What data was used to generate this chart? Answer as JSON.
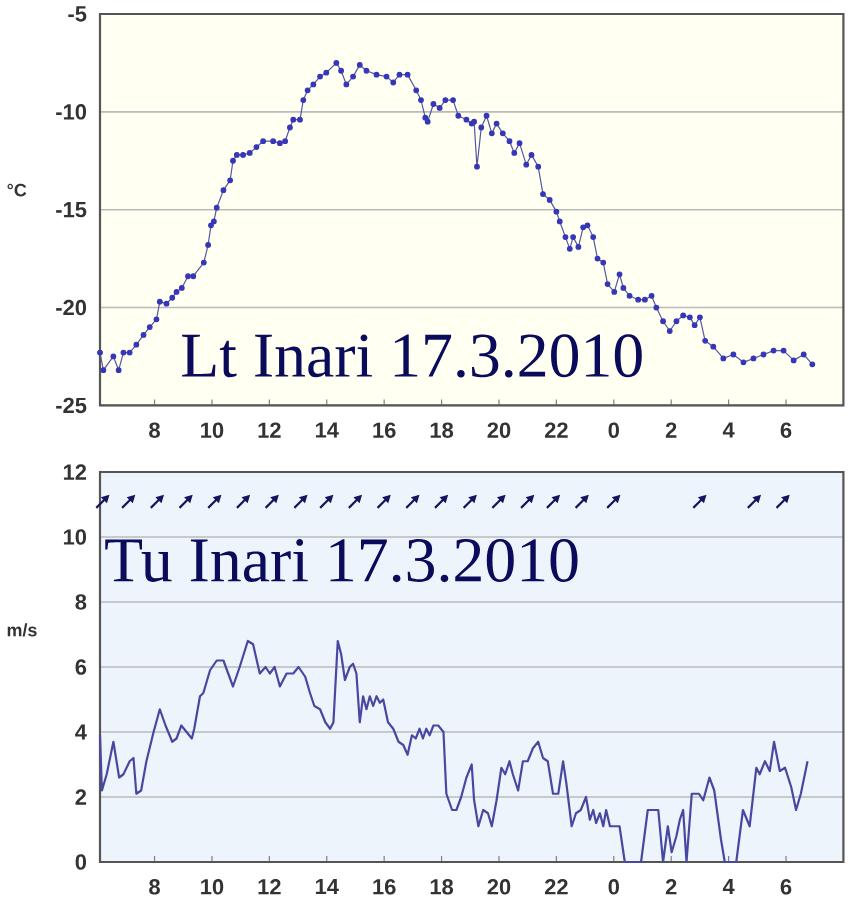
{
  "chart_data": [
    {
      "type": "line",
      "title": "Lt Inari 17.3.2010",
      "ylabel": "°C",
      "xlim": [
        "2010-03-17T06:06",
        "2010-03-18T08:00"
      ],
      "ylim": [
        -25,
        -5
      ],
      "xticks": [
        {
          "value": "2010-03-17T08:00",
          "label": "8"
        },
        {
          "value": "2010-03-17T10:00",
          "label": "10"
        },
        {
          "value": "2010-03-17T12:00",
          "label": "12"
        },
        {
          "value": "2010-03-17T14:00",
          "label": "14"
        },
        {
          "value": "2010-03-17T16:00",
          "label": "16"
        },
        {
          "value": "2010-03-17T18:00",
          "label": "18"
        },
        {
          "value": "2010-03-17T20:00",
          "label": "20"
        },
        {
          "value": "2010-03-17T22:00",
          "label": "22"
        },
        {
          "value": "2010-03-18T00:00",
          "label": "0"
        },
        {
          "value": "2010-03-18T02:00",
          "label": "2"
        },
        {
          "value": "2010-03-18T04:00",
          "label": "4"
        },
        {
          "value": "2010-03-18T06:00",
          "label": "6"
        }
      ],
      "yticks": [
        -25,
        -20,
        -15,
        -10,
        -5
      ],
      "grid": "y",
      "marker": "circle",
      "color": "#3636b8",
      "x": [
        "2010-03-17T06:06",
        "2010-03-17T06:13",
        "2010-03-17T06:34",
        "2010-03-17T06:45",
        "2010-03-17T06:55",
        "2010-03-17T07:08",
        "2010-03-17T07:22",
        "2010-03-17T07:37",
        "2010-03-17T07:50",
        "2010-03-17T08:04",
        "2010-03-17T08:11",
        "2010-03-17T08:25",
        "2010-03-17T08:37",
        "2010-03-17T08:46",
        "2010-03-17T08:57",
        "2010-03-17T09:10",
        "2010-03-17T09:21",
        "2010-03-17T09:43",
        "2010-03-17T09:52",
        "2010-03-17T09:58",
        "2010-03-17T10:04",
        "2010-03-17T10:10",
        "2010-03-17T10:24",
        "2010-03-17T10:38",
        "2010-03-17T10:44",
        "2010-03-17T10:52",
        "2010-03-17T11:05",
        "2010-03-17T11:19",
        "2010-03-17T11:33",
        "2010-03-17T11:47",
        "2010-03-17T12:08",
        "2010-03-17T12:22",
        "2010-03-17T12:33",
        "2010-03-17T12:43",
        "2010-03-17T12:50",
        "2010-03-17T13:04",
        "2010-03-17T13:11",
        "2010-03-17T13:20",
        "2010-03-17T13:32",
        "2010-03-17T13:46",
        "2010-03-17T13:59",
        "2010-03-17T14:20",
        "2010-03-17T14:30",
        "2010-03-17T14:41",
        "2010-03-17T14:55",
        "2010-03-17T15:09",
        "2010-03-17T15:23",
        "2010-03-17T15:44",
        "2010-03-17T16:05",
        "2010-03-17T16:19",
        "2010-03-17T16:32",
        "2010-03-17T16:49",
        "2010-03-17T17:07",
        "2010-03-17T17:17",
        "2010-03-17T17:26",
        "2010-03-17T17:31",
        "2010-03-17T17:43",
        "2010-03-17T17:56",
        "2010-03-17T18:08",
        "2010-03-17T18:24",
        "2010-03-17T18:35",
        "2010-03-17T18:52",
        "2010-03-17T19:03",
        "2010-03-17T19:08",
        "2010-03-17T19:14",
        "2010-03-17T19:23",
        "2010-03-17T19:34",
        "2010-03-17T19:45",
        "2010-03-17T19:55",
        "2010-03-17T20:08",
        "2010-03-17T20:22",
        "2010-03-17T20:32",
        "2010-03-17T20:43",
        "2010-03-17T20:57",
        "2010-03-17T21:08",
        "2010-03-17T21:22",
        "2010-03-17T21:32",
        "2010-03-17T21:46",
        "2010-03-17T22:00",
        "2010-03-17T22:07",
        "2010-03-17T22:19",
        "2010-03-17T22:28",
        "2010-03-17T22:35",
        "2010-03-17T22:46",
        "2010-03-17T22:56",
        "2010-03-17T23:05",
        "2010-03-17T23:17",
        "2010-03-17T23:26",
        "2010-03-17T23:38",
        "2010-03-17T23:47",
        "2010-03-18T00:01",
        "2010-03-18T00:12",
        "2010-03-18T00:20",
        "2010-03-18T00:33",
        "2010-03-18T00:51",
        "2010-03-18T01:05",
        "2010-03-18T01:19",
        "2010-03-18T01:29",
        "2010-03-18T01:43",
        "2010-03-18T01:57",
        "2010-03-18T02:11",
        "2010-03-18T02:25",
        "2010-03-18T02:39",
        "2010-03-18T02:49",
        "2010-03-18T03:00",
        "2010-03-18T03:11",
        "2010-03-18T03:28",
        "2010-03-18T03:49",
        "2010-03-18T04:10",
        "2010-03-18T04:31",
        "2010-03-18T04:52",
        "2010-03-18T05:13",
        "2010-03-18T05:34",
        "2010-03-18T05:55",
        "2010-03-18T06:16",
        "2010-03-18T06:37",
        "2010-03-18T06:55"
      ],
      "values": [
        -22.3,
        -23.2,
        -22.5,
        -23.2,
        -22.3,
        -22.3,
        -21.9,
        -21.4,
        -21.0,
        -20.6,
        -19.7,
        -19.8,
        -19.5,
        -19.2,
        -19.0,
        -18.4,
        -18.4,
        -17.7,
        -16.8,
        -15.8,
        -15.6,
        -14.9,
        -14.0,
        -13.5,
        -12.5,
        -12.2,
        -12.2,
        -12.1,
        -11.8,
        -11.5,
        -11.5,
        -11.6,
        -11.5,
        -10.8,
        -10.4,
        -10.4,
        -9.4,
        -8.9,
        -8.6,
        -8.2,
        -8.0,
        -7.5,
        -7.9,
        -8.6,
        -8.2,
        -7.6,
        -7.9,
        -8.1,
        -8.2,
        -8.5,
        -8.1,
        -8.1,
        -8.9,
        -9.4,
        -10.3,
        -10.5,
        -9.6,
        -9.8,
        -9.4,
        -9.4,
        -10.2,
        -10.4,
        -10.6,
        -10.5,
        -12.8,
        -10.8,
        -10.2,
        -11.1,
        -10.6,
        -11.1,
        -11.5,
        -12.1,
        -11.6,
        -12.7,
        -12.2,
        -12.8,
        -14.2,
        -14.5,
        -15.1,
        -15.6,
        -16.4,
        -17.0,
        -16.4,
        -16.9,
        -15.9,
        -15.8,
        -16.4,
        -17.5,
        -17.7,
        -18.8,
        -19.2,
        -18.3,
        -19.0,
        -19.4,
        -19.6,
        -19.6,
        -19.4,
        -20.0,
        -20.7,
        -21.2,
        -20.7,
        -20.4,
        -20.5,
        -20.9,
        -20.5,
        -21.7,
        -22.0,
        -22.6,
        -22.4,
        -22.8,
        -22.6,
        -22.4,
        -22.2,
        -22.2,
        -22.7,
        -22.4,
        -22.9
      ]
    },
    {
      "type": "line",
      "title": "Tu Inari 17.3.2010",
      "ylabel": "m/s",
      "xlim": [
        "2010-03-17T06:06",
        "2010-03-18T08:00"
      ],
      "ylim": [
        0,
        12
      ],
      "xticks": [
        {
          "value": "2010-03-17T08:00",
          "label": "8"
        },
        {
          "value": "2010-03-17T10:00",
          "label": "10"
        },
        {
          "value": "2010-03-17T12:00",
          "label": "12"
        },
        {
          "value": "2010-03-17T14:00",
          "label": "14"
        },
        {
          "value": "2010-03-17T16:00",
          "label": "16"
        },
        {
          "value": "2010-03-17T18:00",
          "label": "18"
        },
        {
          "value": "2010-03-17T20:00",
          "label": "20"
        },
        {
          "value": "2010-03-17T22:00",
          "label": "22"
        },
        {
          "value": "2010-03-18T00:00",
          "label": "0"
        },
        {
          "value": "2010-03-18T02:00",
          "label": "2"
        },
        {
          "value": "2010-03-18T04:00",
          "label": "4"
        },
        {
          "value": "2010-03-18T06:00",
          "label": "6"
        }
      ],
      "yticks": [
        0,
        2,
        4,
        6,
        8,
        10,
        12
      ],
      "grid": "y",
      "series": [
        {
          "color": "#4848a0",
          "x": [
            "2010-03-17T06:06",
            "2010-03-17T06:10",
            "2010-03-17T06:20",
            "2010-03-17T06:34",
            "2010-03-17T06:46",
            "2010-03-17T06:55",
            "2010-03-17T07:08",
            "2010-03-17T07:16",
            "2010-03-17T07:22",
            "2010-03-17T07:32",
            "2010-03-17T07:43",
            "2010-03-17T07:58",
            "2010-03-17T08:11",
            "2010-03-17T08:23",
            "2010-03-17T08:37",
            "2010-03-17T08:46",
            "2010-03-17T08:56",
            "2010-03-17T09:07",
            "2010-03-17T09:18",
            "2010-03-17T09:23",
            "2010-03-17T09:35",
            "2010-03-17T09:42",
            "2010-03-17T09:56",
            "2010-03-17T10:10",
            "2010-03-17T10:24",
            "2010-03-17T10:34",
            "2010-03-17T10:44",
            "2010-03-17T10:58",
            "2010-03-17T11:15",
            "2010-03-17T11:26",
            "2010-03-17T11:40",
            "2010-03-17T11:52",
            "2010-03-17T12:01",
            "2010-03-17T12:11",
            "2010-03-17T12:22",
            "2010-03-17T12:36",
            "2010-03-17T12:50",
            "2010-03-17T13:01",
            "2010-03-17T13:15",
            "2010-03-17T13:25",
            "2010-03-17T13:34",
            "2010-03-17T13:46",
            "2010-03-17T13:57",
            "2010-03-17T14:07",
            "2010-03-17T14:14",
            "2010-03-17T14:23",
            "2010-03-17T14:30",
            "2010-03-17T14:38",
            "2010-03-17T14:48",
            "2010-03-17T14:55",
            "2010-03-17T15:02",
            "2010-03-17T15:09",
            "2010-03-17T15:16",
            "2010-03-17T15:23",
            "2010-03-17T15:30",
            "2010-03-17T15:37",
            "2010-03-17T15:44",
            "2010-03-17T15:51",
            "2010-03-17T15:58",
            "2010-03-17T16:08",
            "2010-03-17T16:19",
            "2010-03-17T16:30",
            "2010-03-17T16:40",
            "2010-03-17T16:49",
            "2010-03-17T16:58",
            "2010-03-17T17:06",
            "2010-03-17T17:14",
            "2010-03-17T17:21",
            "2010-03-17T17:28",
            "2010-03-17T17:35",
            "2010-03-17T17:43",
            "2010-03-17T17:53",
            "2010-03-17T18:04",
            "2010-03-17T18:10",
            "2010-03-17T18:22",
            "2010-03-17T18:31",
            "2010-03-17T18:41",
            "2010-03-17T18:52",
            "2010-03-17T19:03",
            "2010-03-17T19:08",
            "2010-03-17T19:17",
            "2010-03-17T19:27",
            "2010-03-17T19:37",
            "2010-03-17T19:45",
            "2010-03-17T19:55",
            "2010-03-17T20:05",
            "2010-03-17T20:13",
            "2010-03-17T20:22",
            "2010-03-17T20:29",
            "2010-03-17T20:40",
            "2010-03-17T20:50",
            "2010-03-17T21:00",
            "2010-03-17T21:11",
            "2010-03-17T21:22",
            "2010-03-17T21:32",
            "2010-03-17T21:42",
            "2010-03-17T21:53",
            "2010-03-17T22:04",
            "2010-03-17T22:14",
            "2010-03-17T22:21",
            "2010-03-17T22:32",
            "2010-03-17T22:41",
            "2010-03-17T22:51",
            "2010-03-17T23:02",
            "2010-03-17T23:10",
            "2010-03-17T23:17",
            "2010-03-17T23:23",
            "2010-03-17T23:31",
            "2010-03-17T23:38",
            "2010-03-17T23:44",
            "2010-03-17T23:52",
            "2010-03-18T00:12",
            "2010-03-18T00:23",
            "2010-03-18T00:57",
            "2010-03-18T01:11",
            "2010-03-18T01:33",
            "2010-03-18T01:43",
            "2010-03-18T01:53",
            "2010-03-18T02:01",
            "2010-03-18T02:11",
            "2010-03-18T02:18",
            "2010-03-18T02:25",
            "2010-03-18T02:32",
            "2010-03-18T02:43",
            "2010-03-18T02:58",
            "2010-03-18T03:07",
            "2010-03-18T03:20",
            "2010-03-18T03:30",
            "2010-03-18T03:44",
            "2010-03-18T03:52",
            "2010-03-18T04:16",
            "2010-03-18T04:30",
            "2010-03-18T04:44",
            "2010-03-18T04:58",
            "2010-03-18T05:05",
            "2010-03-18T05:16",
            "2010-03-18T05:26",
            "2010-03-18T05:35",
            "2010-03-18T05:47",
            "2010-03-18T05:58",
            "2010-03-18T06:11",
            "2010-03-18T06:21",
            "2010-03-18T06:31",
            "2010-03-18T06:45"
          ],
          "values": [
            3.9,
            2.2,
            2.7,
            3.7,
            2.6,
            2.7,
            3.1,
            3.2,
            2.1,
            2.2,
            3.1,
            4.0,
            4.7,
            4.2,
            3.7,
            3.8,
            4.2,
            4.0,
            3.8,
            4.1,
            5.1,
            5.2,
            5.9,
            6.2,
            6.2,
            5.8,
            5.4,
            6.0,
            6.8,
            6.7,
            5.8,
            6.0,
            5.8,
            6.0,
            5.4,
            5.8,
            5.8,
            6.0,
            5.7,
            5.2,
            4.8,
            4.7,
            4.3,
            4.1,
            4.3,
            6.8,
            6.4,
            5.6,
            6.0,
            6.1,
            5.8,
            4.3,
            5.1,
            4.7,
            5.1,
            4.8,
            5.1,
            4.9,
            5.0,
            4.3,
            4.1,
            3.7,
            3.6,
            3.3,
            3.9,
            3.8,
            4.1,
            3.8,
            4.1,
            3.9,
            4.2,
            4.2,
            4.0,
            2.1,
            1.6,
            1.6,
            2.0,
            2.6,
            3.0,
            1.9,
            1.1,
            1.6,
            1.5,
            1.1,
            1.9,
            2.9,
            2.7,
            3.1,
            2.7,
            2.2,
            3.1,
            3.1,
            3.5,
            3.7,
            3.2,
            3.1,
            2.1,
            2.1,
            3.1,
            2.4,
            1.1,
            1.5,
            1.6,
            2.0,
            1.3,
            1.6,
            1.2,
            1.5,
            1.1,
            1.6,
            1.1,
            1.1,
            0,
            0,
            1.6,
            1.6,
            0,
            1.1,
            0.3,
            0.8,
            1.3,
            1.6,
            0,
            2.1,
            2.1,
            1.9,
            2.6,
            2.2,
            0.7,
            0,
            0,
            1.6,
            1.1,
            2.9,
            2.7,
            3.1,
            2.8,
            3.7,
            2.8,
            2.9,
            2.3,
            1.6,
            2.1,
            3.1
          ]
        },
        {
          "type": "scatter",
          "color": "#15155e",
          "marker": "triangle",
          "x": [
            "2010-03-17T06:12",
            "2010-03-17T07:06",
            "2010-03-17T08:06",
            "2010-03-17T09:06",
            "2010-03-17T10:06",
            "2010-03-17T11:06",
            "2010-03-17T12:06",
            "2010-03-17T13:06",
            "2010-03-17T14:00",
            "2010-03-17T15:00",
            "2010-03-17T16:00",
            "2010-03-17T17:00",
            "2010-03-17T18:00",
            "2010-03-17T19:00",
            "2010-03-17T20:00",
            "2010-03-17T21:00",
            "2010-03-17T21:54",
            "2010-03-17T22:54",
            "2010-03-18T00:00",
            "2010-03-18T03:00",
            "2010-03-18T04:54",
            "2010-03-18T05:54"
          ],
          "values": [
            11.1,
            11.1,
            11.1,
            11.1,
            11.1,
            11.1,
            11.1,
            11.1,
            11.1,
            11.1,
            11.1,
            11.1,
            11.1,
            11.1,
            11.1,
            11.1,
            11.1,
            11.1,
            11.1,
            11.1,
            11.1,
            11.1
          ]
        }
      ]
    }
  ]
}
